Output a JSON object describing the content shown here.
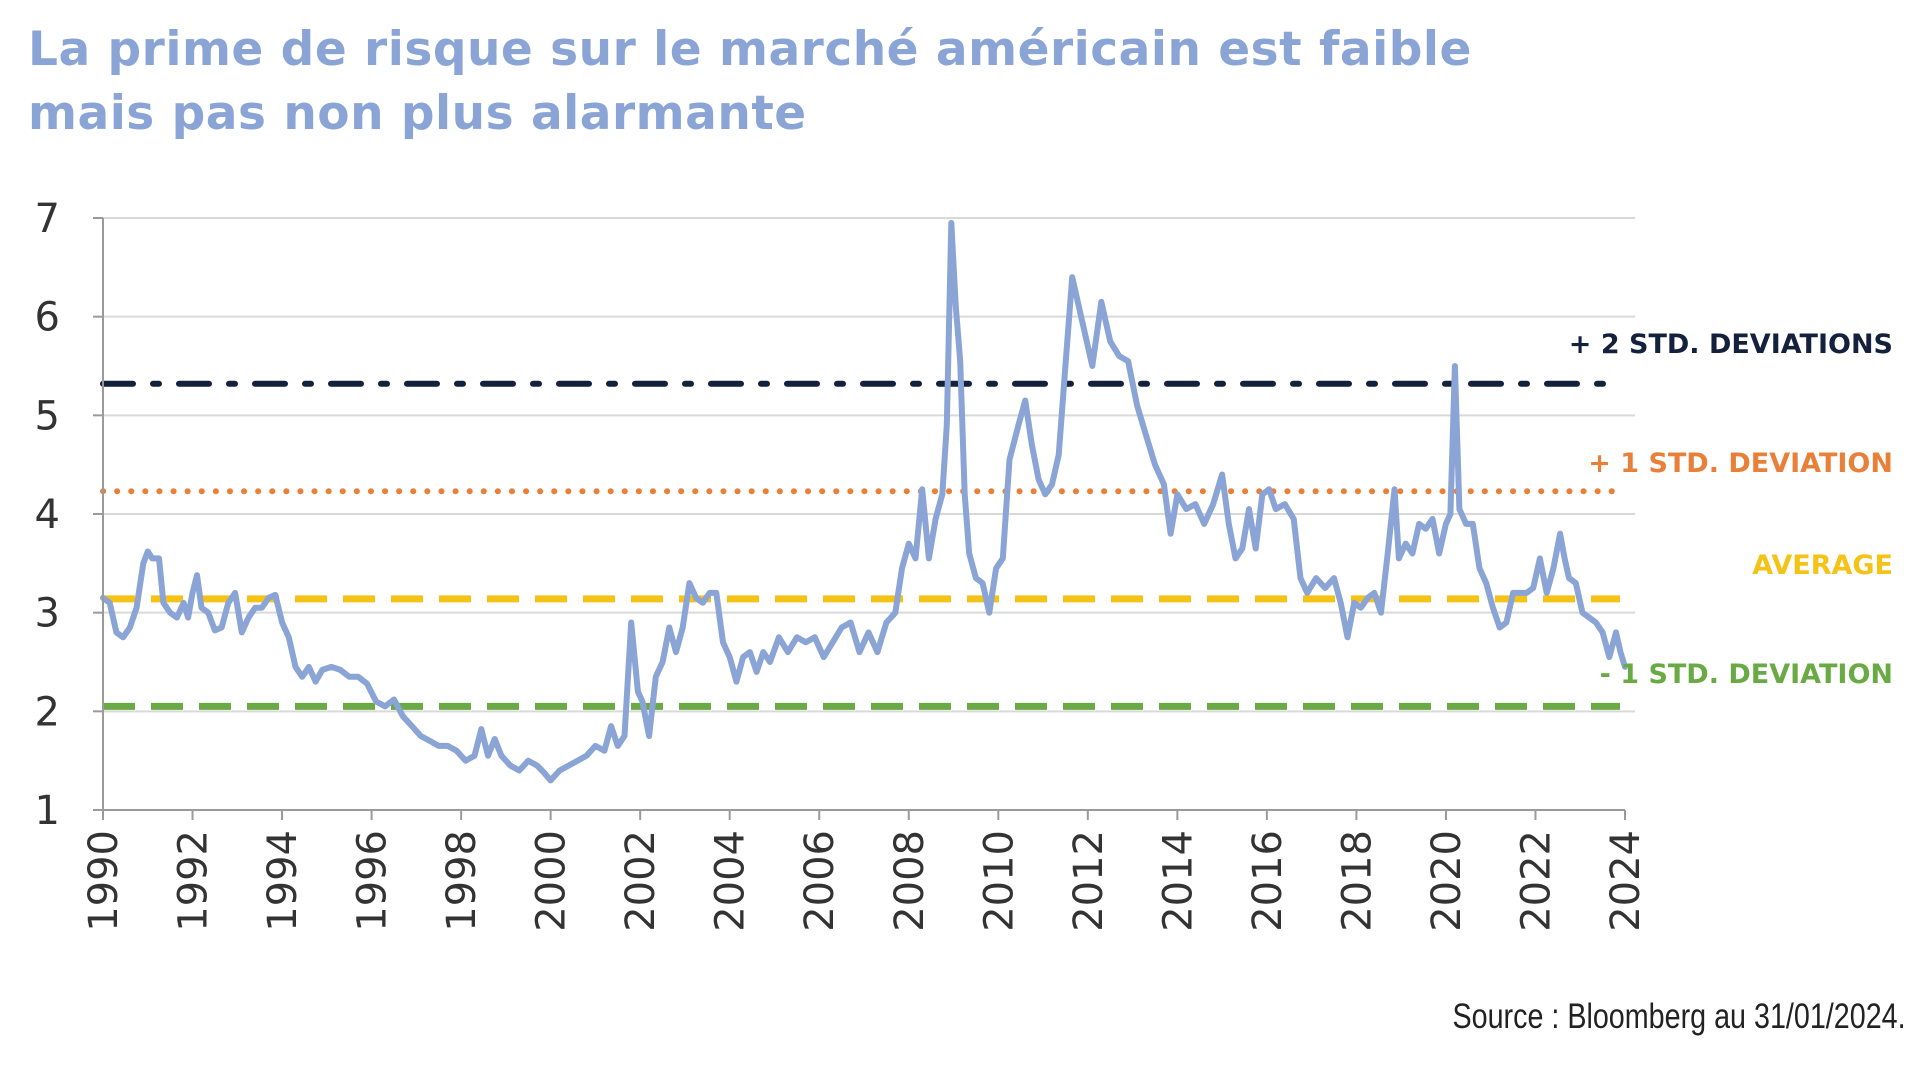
{
  "title": {
    "line1": "La prime de risque sur le marché américain est faible",
    "line2": "mais pas non plus alarmante"
  },
  "source": "Source : Bloomberg au 31/01/2024.",
  "colors": {
    "title": "#8aa4d6",
    "series": "#8aa4d6",
    "plus2": "#14213d",
    "plus1": "#e8803a",
    "average": "#f5c216",
    "minus1": "#6aaa44",
    "grid": "#d9d9d9",
    "axis": "#9a9a9a"
  },
  "chart_data": {
    "type": "line",
    "title": "La prime de risque sur le marché américain est faible mais pas non plus alarmante",
    "xlabel": "",
    "ylabel": "",
    "xlim": [
      1990,
      2024
    ],
    "ylim": [
      1,
      7
    ],
    "yticks": [
      "1",
      "2",
      "3",
      "4",
      "5",
      "6",
      "7"
    ],
    "xticks": [
      "1990",
      "1992",
      "1994",
      "1996",
      "1998",
      "2000",
      "2002",
      "2004",
      "2006",
      "2008",
      "2010",
      "2012",
      "2014",
      "2016",
      "2018",
      "2020",
      "2022",
      "2024"
    ],
    "grid": true,
    "reference_lines": [
      {
        "key": "plus2",
        "label": "+ 2 STD. DEVIATIONS",
        "value": 5.32,
        "style": "dashdot"
      },
      {
        "key": "plus1",
        "label": "+ 1 STD. DEVIATION",
        "value": 4.23,
        "style": "dotted"
      },
      {
        "key": "average",
        "label": "AVERAGE",
        "value": 3.14,
        "style": "dashed"
      },
      {
        "key": "minus1",
        "label": "- 1 STD. DEVIATION",
        "value": 2.05,
        "style": "dashed"
      }
    ],
    "series": [
      {
        "name": "Prime de risque",
        "points": [
          [
            1990.0,
            3.15
          ],
          [
            1990.15,
            3.1
          ],
          [
            1990.3,
            2.8
          ],
          [
            1990.45,
            2.75
          ],
          [
            1990.6,
            2.85
          ],
          [
            1990.75,
            3.05
          ],
          [
            1990.9,
            3.5
          ],
          [
            1991.0,
            3.62
          ],
          [
            1991.1,
            3.55
          ],
          [
            1991.25,
            3.55
          ],
          [
            1991.35,
            3.1
          ],
          [
            1991.5,
            3.0
          ],
          [
            1991.65,
            2.95
          ],
          [
            1991.8,
            3.1
          ],
          [
            1991.9,
            2.95
          ],
          [
            1992.0,
            3.2
          ],
          [
            1992.1,
            3.38
          ],
          [
            1992.2,
            3.05
          ],
          [
            1992.35,
            3.0
          ],
          [
            1992.5,
            2.82
          ],
          [
            1992.65,
            2.85
          ],
          [
            1992.8,
            3.1
          ],
          [
            1992.95,
            3.2
          ],
          [
            1993.1,
            2.8
          ],
          [
            1993.25,
            2.95
          ],
          [
            1993.4,
            3.05
          ],
          [
            1993.55,
            3.05
          ],
          [
            1993.7,
            3.15
          ],
          [
            1993.85,
            3.18
          ],
          [
            1994.0,
            2.9
          ],
          [
            1994.15,
            2.75
          ],
          [
            1994.3,
            2.45
          ],
          [
            1994.45,
            2.35
          ],
          [
            1994.6,
            2.45
          ],
          [
            1994.75,
            2.3
          ],
          [
            1994.9,
            2.42
          ],
          [
            1995.1,
            2.45
          ],
          [
            1995.3,
            2.42
          ],
          [
            1995.5,
            2.35
          ],
          [
            1995.7,
            2.35
          ],
          [
            1995.9,
            2.28
          ],
          [
            1996.1,
            2.1
          ],
          [
            1996.3,
            2.05
          ],
          [
            1996.5,
            2.12
          ],
          [
            1996.7,
            1.95
          ],
          [
            1996.9,
            1.85
          ],
          [
            1997.1,
            1.75
          ],
          [
            1997.3,
            1.7
          ],
          [
            1997.5,
            1.65
          ],
          [
            1997.7,
            1.65
          ],
          [
            1997.9,
            1.6
          ],
          [
            1998.1,
            1.5
          ],
          [
            1998.3,
            1.55
          ],
          [
            1998.45,
            1.82
          ],
          [
            1998.6,
            1.55
          ],
          [
            1998.75,
            1.72
          ],
          [
            1998.9,
            1.55
          ],
          [
            1999.1,
            1.45
          ],
          [
            1999.3,
            1.4
          ],
          [
            1999.5,
            1.5
          ],
          [
            1999.7,
            1.45
          ],
          [
            1999.85,
            1.38
          ],
          [
            2000.0,
            1.3
          ],
          [
            2000.2,
            1.4
          ],
          [
            2000.4,
            1.45
          ],
          [
            2000.6,
            1.5
          ],
          [
            2000.8,
            1.55
          ],
          [
            2001.0,
            1.65
          ],
          [
            2001.2,
            1.6
          ],
          [
            2001.35,
            1.85
          ],
          [
            2001.5,
            1.65
          ],
          [
            2001.65,
            1.75
          ],
          [
            2001.8,
            2.9
          ],
          [
            2001.95,
            2.2
          ],
          [
            2002.05,
            2.1
          ],
          [
            2002.2,
            1.75
          ],
          [
            2002.35,
            2.35
          ],
          [
            2002.5,
            2.5
          ],
          [
            2002.65,
            2.85
          ],
          [
            2002.8,
            2.6
          ],
          [
            2002.95,
            2.85
          ],
          [
            2003.1,
            3.3
          ],
          [
            2003.25,
            3.15
          ],
          [
            2003.4,
            3.1
          ],
          [
            2003.55,
            3.2
          ],
          [
            2003.7,
            3.2
          ],
          [
            2003.85,
            2.7
          ],
          [
            2004.0,
            2.55
          ],
          [
            2004.15,
            2.3
          ],
          [
            2004.3,
            2.55
          ],
          [
            2004.45,
            2.6
          ],
          [
            2004.6,
            2.4
          ],
          [
            2004.75,
            2.6
          ],
          [
            2004.9,
            2.5
          ],
          [
            2005.1,
            2.75
          ],
          [
            2005.3,
            2.6
          ],
          [
            2005.5,
            2.75
          ],
          [
            2005.7,
            2.7
          ],
          [
            2005.9,
            2.75
          ],
          [
            2006.1,
            2.55
          ],
          [
            2006.3,
            2.7
          ],
          [
            2006.5,
            2.85
          ],
          [
            2006.7,
            2.9
          ],
          [
            2006.9,
            2.6
          ],
          [
            2007.1,
            2.8
          ],
          [
            2007.3,
            2.6
          ],
          [
            2007.5,
            2.9
          ],
          [
            2007.7,
            3.0
          ],
          [
            2007.85,
            3.45
          ],
          [
            2008.0,
            3.7
          ],
          [
            2008.15,
            3.55
          ],
          [
            2008.3,
            4.25
          ],
          [
            2008.45,
            3.55
          ],
          [
            2008.6,
            3.95
          ],
          [
            2008.75,
            4.2
          ],
          [
            2008.85,
            4.9
          ],
          [
            2008.95,
            6.95
          ],
          [
            2009.05,
            6.1
          ],
          [
            2009.15,
            5.55
          ],
          [
            2009.25,
            4.2
          ],
          [
            2009.35,
            3.6
          ],
          [
            2009.5,
            3.35
          ],
          [
            2009.65,
            3.3
          ],
          [
            2009.8,
            3.0
          ],
          [
            2009.95,
            3.45
          ],
          [
            2010.1,
            3.55
          ],
          [
            2010.25,
            4.55
          ],
          [
            2010.45,
            4.9
          ],
          [
            2010.6,
            5.15
          ],
          [
            2010.75,
            4.7
          ],
          [
            2010.9,
            4.35
          ],
          [
            2011.05,
            4.2
          ],
          [
            2011.2,
            4.3
          ],
          [
            2011.35,
            4.6
          ],
          [
            2011.5,
            5.5
          ],
          [
            2011.65,
            6.4
          ],
          [
            2011.8,
            6.1
          ],
          [
            2011.95,
            5.8
          ],
          [
            2012.1,
            5.5
          ],
          [
            2012.3,
            6.15
          ],
          [
            2012.5,
            5.75
          ],
          [
            2012.7,
            5.6
          ],
          [
            2012.9,
            5.55
          ],
          [
            2013.1,
            5.1
          ],
          [
            2013.3,
            4.8
          ],
          [
            2013.5,
            4.5
          ],
          [
            2013.7,
            4.3
          ],
          [
            2013.85,
            3.8
          ],
          [
            2014.0,
            4.2
          ],
          [
            2014.2,
            4.05
          ],
          [
            2014.4,
            4.1
          ],
          [
            2014.6,
            3.9
          ],
          [
            2014.8,
            4.1
          ],
          [
            2015.0,
            4.4
          ],
          [
            2015.15,
            3.9
          ],
          [
            2015.3,
            3.55
          ],
          [
            2015.45,
            3.65
          ],
          [
            2015.6,
            4.05
          ],
          [
            2015.75,
            3.65
          ],
          [
            2015.9,
            4.2
          ],
          [
            2016.05,
            4.25
          ],
          [
            2016.2,
            4.05
          ],
          [
            2016.4,
            4.1
          ],
          [
            2016.6,
            3.95
          ],
          [
            2016.75,
            3.35
          ],
          [
            2016.9,
            3.2
          ],
          [
            2017.1,
            3.35
          ],
          [
            2017.3,
            3.25
          ],
          [
            2017.5,
            3.35
          ],
          [
            2017.65,
            3.1
          ],
          [
            2017.8,
            2.75
          ],
          [
            2017.95,
            3.1
          ],
          [
            2018.1,
            3.05
          ],
          [
            2018.25,
            3.15
          ],
          [
            2018.4,
            3.2
          ],
          [
            2018.55,
            3.0
          ],
          [
            2018.7,
            3.6
          ],
          [
            2018.85,
            4.25
          ],
          [
            2018.95,
            3.55
          ],
          [
            2019.1,
            3.7
          ],
          [
            2019.25,
            3.6
          ],
          [
            2019.4,
            3.9
          ],
          [
            2019.55,
            3.85
          ],
          [
            2019.7,
            3.95
          ],
          [
            2019.85,
            3.6
          ],
          [
            2020.0,
            3.9
          ],
          [
            2020.1,
            4.0
          ],
          [
            2020.2,
            5.5
          ],
          [
            2020.3,
            4.05
          ],
          [
            2020.45,
            3.9
          ],
          [
            2020.6,
            3.9
          ],
          [
            2020.75,
            3.45
          ],
          [
            2020.9,
            3.3
          ],
          [
            2021.05,
            3.05
          ],
          [
            2021.2,
            2.85
          ],
          [
            2021.35,
            2.9
          ],
          [
            2021.5,
            3.2
          ],
          [
            2021.65,
            3.2
          ],
          [
            2021.8,
            3.2
          ],
          [
            2021.95,
            3.25
          ],
          [
            2022.1,
            3.55
          ],
          [
            2022.25,
            3.2
          ],
          [
            2022.4,
            3.45
          ],
          [
            2022.55,
            3.8
          ],
          [
            2022.65,
            3.55
          ],
          [
            2022.75,
            3.35
          ],
          [
            2022.9,
            3.3
          ],
          [
            2023.05,
            3.0
          ],
          [
            2023.2,
            2.95
          ],
          [
            2023.35,
            2.9
          ],
          [
            2023.5,
            2.8
          ],
          [
            2023.65,
            2.55
          ],
          [
            2023.8,
            2.8
          ],
          [
            2023.9,
            2.6
          ],
          [
            2024.0,
            2.45
          ]
        ]
      }
    ]
  }
}
